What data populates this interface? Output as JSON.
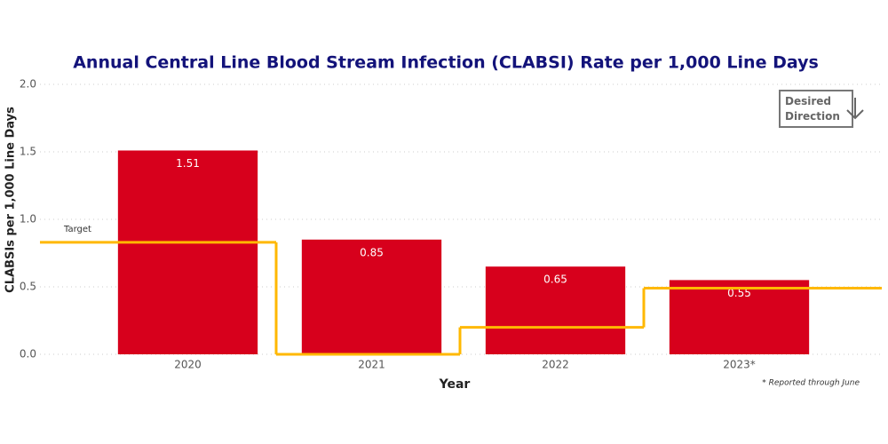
{
  "chart_data": {
    "type": "bar",
    "title": "Annual Central Line Blood Stream Infection (CLABSI) Rate per 1,000 Line Days",
    "x_label": "Year",
    "y_label": "CLABSIs per 1,000 Line Days",
    "categories": [
      "2020",
      "2021",
      "2022",
      "2023*"
    ],
    "values": [
      1.51,
      0.85,
      0.65,
      0.55
    ],
    "color": "#d7001c",
    "target": {
      "label": "Target",
      "values": [
        0.83,
        0,
        0.2,
        0.49
      ],
      "color": "#ffb800"
    },
    "ylim": [
      0,
      2
    ],
    "yticks": [
      {
        "value": 0,
        "label": "0.0"
      },
      {
        "value": 0.5,
        "label": "0.5"
      },
      {
        "value": 1,
        "label": "1.0"
      },
      {
        "value": 1.5,
        "label": "1.5"
      },
      {
        "value": 2,
        "label": "2.0"
      }
    ],
    "grid": true,
    "annotations": [
      "Desired Direction",
      "* Reported through June"
    ]
  }
}
